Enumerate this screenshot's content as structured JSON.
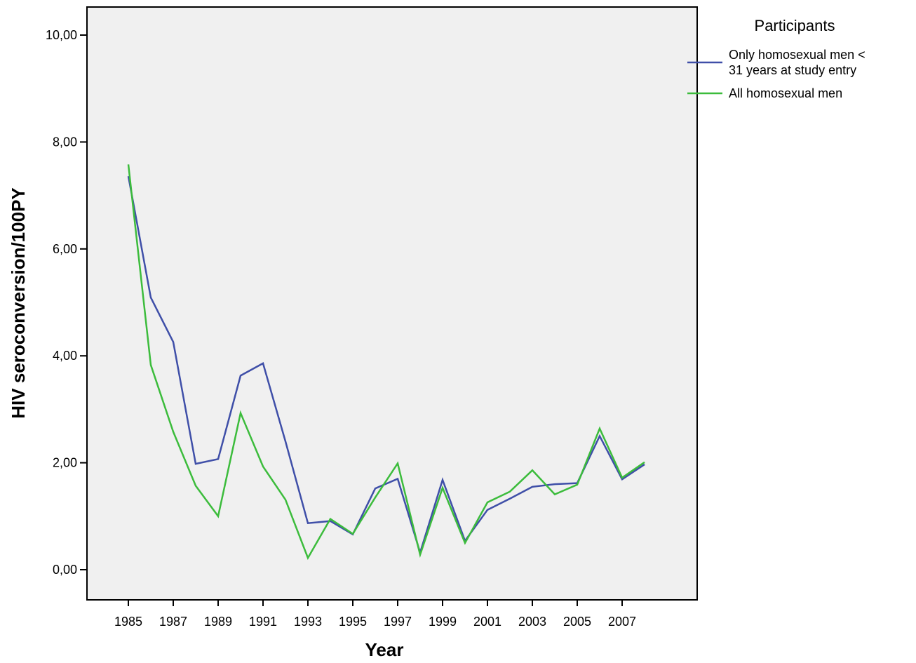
{
  "chart_data": {
    "type": "line",
    "title": "",
    "xlabel": "Year",
    "ylabel": "HIV seroconversion/100PY",
    "x": [
      1985,
      1986,
      1987,
      1988,
      1989,
      1990,
      1991,
      1992,
      1993,
      1994,
      1995,
      1996,
      1997,
      1998,
      1999,
      2000,
      2001,
      2002,
      2003,
      2004,
      2005,
      2006,
      2007,
      2008
    ],
    "xlim": [
      1985,
      2008
    ],
    "x_tick_labels": [
      "1985",
      "1987",
      "1989",
      "1991",
      "1993",
      "1995",
      "1997",
      "1999",
      "2001",
      "2003",
      "2005",
      "2007"
    ],
    "ylim": [
      -0.5,
      10.5
    ],
    "y_ticks": [
      0,
      2,
      4,
      6,
      8,
      10
    ],
    "y_tick_labels": [
      "0,00",
      "2,00",
      "4,00",
      "6,00",
      "8,00",
      "10,00"
    ],
    "grid": false,
    "background": "#f0f0f0",
    "legend": {
      "title": "Participants",
      "position": "right",
      "entries": [
        {
          "lines": [
            "Only homosexual men <",
            "31 years at study entry"
          ],
          "color": "#3f4fa8"
        },
        {
          "lines": [
            "All homosexual men"
          ],
          "color": "#3cbc3c"
        }
      ]
    },
    "series": [
      {
        "name": "Only homosexual men < 31 years at study entry",
        "color": "#3f4fa8",
        "values": [
          7.36,
          5.09,
          4.26,
          1.98,
          2.07,
          3.63,
          3.86,
          2.4,
          0.87,
          0.91,
          0.66,
          1.52,
          1.7,
          0.32,
          1.68,
          0.54,
          1.12,
          1.33,
          1.55,
          1.6,
          1.62,
          2.5,
          1.69,
          1.97
        ]
      },
      {
        "name": "All homosexual men",
        "color": "#3cbc3c",
        "values": [
          7.58,
          3.83,
          2.58,
          1.57,
          1.0,
          2.93,
          1.93,
          1.31,
          0.22,
          0.95,
          0.67,
          1.35,
          1.99,
          0.28,
          1.53,
          0.5,
          1.26,
          1.46,
          1.86,
          1.41,
          1.59,
          2.64,
          1.72,
          2.01
        ]
      }
    ]
  }
}
